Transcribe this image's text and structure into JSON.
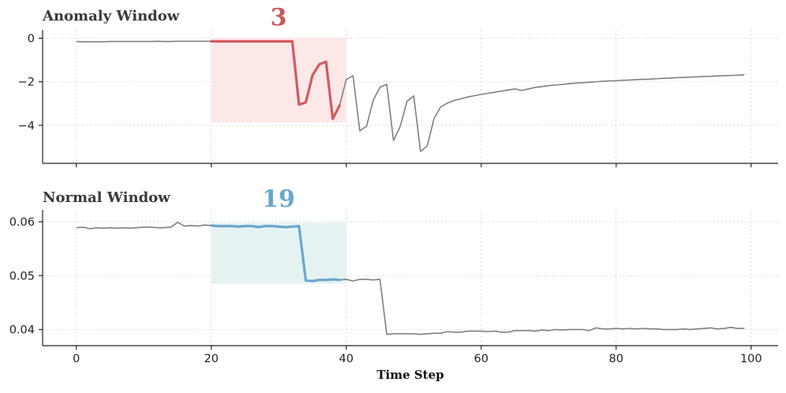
{
  "chart_data": [
    {
      "type": "line",
      "title": "Anomaly Window",
      "window_label": "3",
      "window": [
        20,
        40
      ],
      "highlight_range": [
        20,
        40
      ],
      "xlim": [
        -5,
        104
      ],
      "ylim": [
        -5.75,
        0.38
      ],
      "yticks": [
        0,
        -2,
        -4
      ],
      "ytick_labels": [
        "0",
        "−2",
        "−4"
      ],
      "xticks": [
        0,
        20,
        40,
        60,
        80,
        100
      ],
      "x": [
        0,
        1,
        2,
        3,
        4,
        5,
        6,
        7,
        8,
        9,
        10,
        11,
        12,
        13,
        14,
        15,
        16,
        17,
        18,
        19,
        20,
        21,
        22,
        23,
        24,
        25,
        26,
        27,
        28,
        29,
        30,
        31,
        32,
        33,
        34,
        35,
        36,
        37,
        38,
        39,
        40,
        41,
        42,
        43,
        44,
        45,
        46,
        47,
        48,
        49,
        50,
        51,
        52,
        53,
        54,
        55,
        56,
        57,
        58,
        59,
        60,
        61,
        62,
        63,
        64,
        65,
        66,
        67,
        68,
        69,
        70,
        71,
        72,
        73,
        74,
        75,
        76,
        77,
        78,
        79,
        80,
        81,
        82,
        83,
        84,
        85,
        86,
        87,
        88,
        89,
        90,
        91,
        92,
        93,
        94,
        95,
        96,
        97,
        98,
        99
      ],
      "series": [
        {
          "values": [
            -0.15,
            -0.16,
            -0.16,
            -0.16,
            -0.16,
            -0.15,
            -0.15,
            -0.15,
            -0.15,
            -0.15,
            -0.15,
            -0.15,
            -0.14,
            -0.15,
            -0.15,
            -0.14,
            -0.14,
            -0.14,
            -0.14,
            -0.14,
            -0.14,
            -0.14,
            -0.14,
            -0.14,
            -0.14,
            -0.14,
            -0.14,
            -0.14,
            -0.14,
            -0.14,
            -0.14,
            -0.14,
            -0.14,
            -3.05,
            -2.95,
            -1.7,
            -1.2,
            -1.08,
            -3.7,
            -3.1,
            -1.9,
            -1.72,
            -4.25,
            -4.05,
            -2.85,
            -2.25,
            -2.12,
            -4.7,
            -4.05,
            -2.9,
            -2.65,
            -5.2,
            -4.95,
            -3.7,
            -3.15,
            -2.98,
            -2.86,
            -2.78,
            -2.7,
            -2.64,
            -2.58,
            -2.53,
            -2.48,
            -2.43,
            -2.38,
            -2.33,
            -2.4,
            -2.33,
            -2.26,
            -2.22,
            -2.18,
            -2.15,
            -2.12,
            -2.09,
            -2.06,
            -2.04,
            -2.02,
            -2.0,
            -1.98,
            -1.96,
            -1.95,
            -1.93,
            -1.92,
            -1.9,
            -1.89,
            -1.88,
            -1.86,
            -1.84,
            -1.83,
            -1.81,
            -1.8,
            -1.79,
            -1.77,
            -1.76,
            -1.75,
            -1.73,
            -1.72,
            -1.71,
            -1.7,
            -1.68
          ]
        }
      ],
      "colors": {
        "line": "#808080",
        "highlight": "#d15a5f",
        "window_fill": "#fde5e5",
        "number": "#c9575b"
      }
    },
    {
      "type": "line",
      "title": "Normal Window",
      "window_label": "19",
      "window": [
        20,
        40
      ],
      "highlight_range": [
        20,
        40
      ],
      "xlim": [
        -5,
        104
      ],
      "ylim": [
        0.037,
        0.0622
      ],
      "yticks": [
        0.06,
        0.05,
        0.04
      ],
      "ytick_labels": [
        "0.06",
        "0.05",
        "0.04"
      ],
      "xticks": [
        0,
        20,
        40,
        60,
        80,
        100
      ],
      "xtick_labels": [
        "0",
        "20",
        "40",
        "60",
        "80",
        "100"
      ],
      "xlabel": "Time Step",
      "x": [
        0,
        1,
        2,
        3,
        4,
        5,
        6,
        7,
        8,
        9,
        10,
        11,
        12,
        13,
        14,
        15,
        16,
        17,
        18,
        19,
        20,
        21,
        22,
        23,
        24,
        25,
        26,
        27,
        28,
        29,
        30,
        31,
        32,
        33,
        34,
        35,
        36,
        37,
        38,
        39,
        40,
        41,
        42,
        43,
        44,
        45,
        46,
        47,
        48,
        49,
        50,
        51,
        52,
        53,
        54,
        55,
        56,
        57,
        58,
        59,
        60,
        61,
        62,
        63,
        64,
        65,
        66,
        67,
        68,
        69,
        70,
        71,
        72,
        73,
        74,
        75,
        76,
        77,
        78,
        79,
        80,
        81,
        82,
        83,
        84,
        85,
        86,
        87,
        88,
        89,
        90,
        91,
        92,
        93,
        94,
        95,
        96,
        97,
        98,
        99
      ],
      "series": [
        {
          "values": [
            0.0589,
            0.059,
            0.0587,
            0.0589,
            0.0588,
            0.0589,
            0.0588,
            0.0589,
            0.0588,
            0.0589,
            0.059,
            0.059,
            0.0589,
            0.0589,
            0.059,
            0.0599,
            0.0592,
            0.0593,
            0.0592,
            0.0594,
            0.0593,
            0.0592,
            0.0592,
            0.0592,
            0.0591,
            0.0592,
            0.0592,
            0.059,
            0.0592,
            0.0592,
            0.0591,
            0.059,
            0.0591,
            0.0592,
            0.0491,
            0.049,
            0.0492,
            0.0492,
            0.0493,
            0.0492,
            0.0493,
            0.049,
            0.0493,
            0.0493,
            0.0492,
            0.0493,
            0.0391,
            0.0392,
            0.0392,
            0.0392,
            0.0392,
            0.0391,
            0.0392,
            0.0393,
            0.0393,
            0.0396,
            0.0395,
            0.0395,
            0.0397,
            0.0397,
            0.0397,
            0.0396,
            0.0397,
            0.0395,
            0.0395,
            0.0398,
            0.0398,
            0.0398,
            0.0397,
            0.0399,
            0.0398,
            0.04,
            0.0399,
            0.04,
            0.04,
            0.04,
            0.0398,
            0.0403,
            0.0401,
            0.0401,
            0.0402,
            0.0401,
            0.0402,
            0.0401,
            0.0402,
            0.0401,
            0.0401,
            0.04,
            0.04,
            0.04,
            0.0401,
            0.04,
            0.0401,
            0.0402,
            0.0403,
            0.0401,
            0.0402,
            0.0404,
            0.0402,
            0.0402
          ]
        }
      ],
      "colors": {
        "line": "#808080",
        "highlight": "#6aa7cf",
        "window_fill": "#e2f1f1",
        "number": "#6aa7cf"
      }
    }
  ]
}
